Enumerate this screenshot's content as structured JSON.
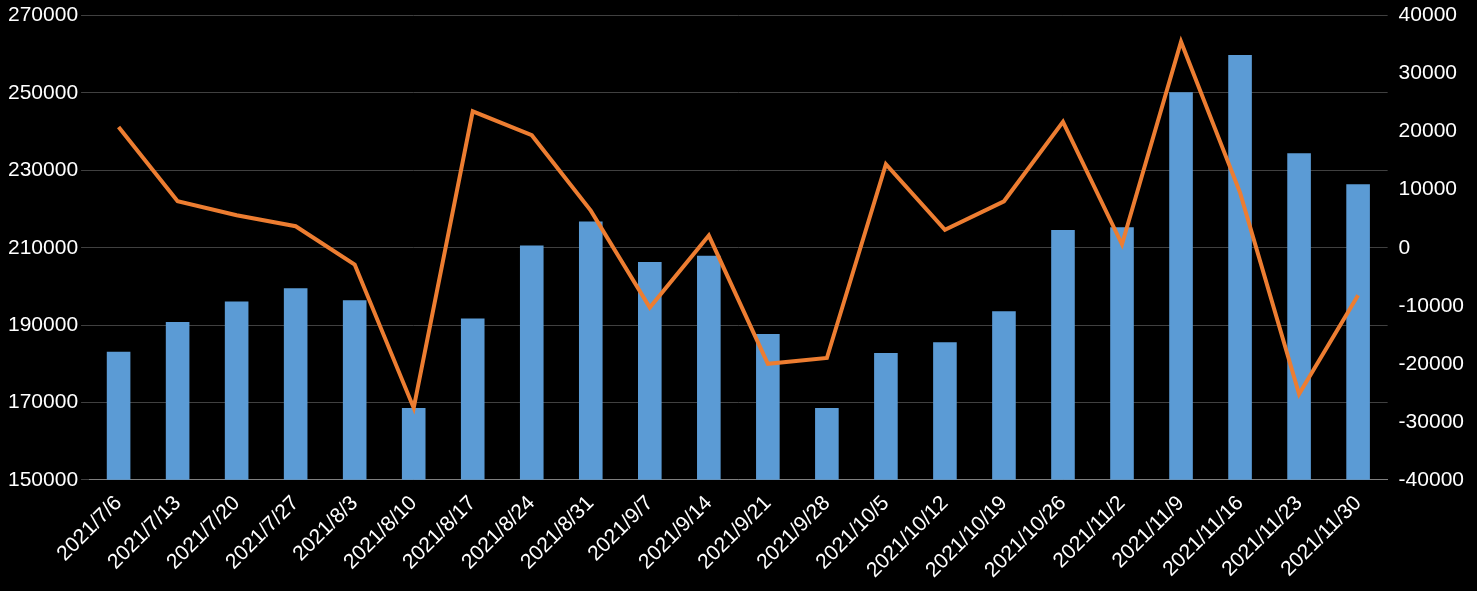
{
  "chart_data": {
    "type": "bar",
    "categories": [
      "2021/7/6",
      "2021/7/13",
      "2021/7/20",
      "2021/7/27",
      "2021/8/3",
      "2021/8/10",
      "2021/8/17",
      "2021/8/24",
      "2021/8/31",
      "2021/9/7",
      "2021/9/14",
      "2021/9/21",
      "2021/9/28",
      "2021/10/5",
      "2021/10/12",
      "2021/10/19",
      "2021/10/26",
      "2021/11/2",
      "2021/11/9",
      "2021/11/16",
      "2021/11/23",
      "2021/11/30"
    ],
    "series": [
      {
        "type": "bar",
        "color": "#5b9bd5",
        "values": [
          183100,
          190800,
          196100,
          199500,
          196400,
          168600,
          191700,
          210600,
          216800,
          206300,
          207900,
          187700,
          168600,
          182800,
          185600,
          193600,
          214600,
          215300,
          250200,
          259800,
          234400,
          226400
        ]
      },
      {
        "type": "line",
        "color": "#ed7d31",
        "axis": "y2",
        "values": [
          20800,
          8000,
          5600,
          3700,
          -2900,
          -27600,
          23500,
          19400,
          6400,
          -10300,
          2100,
          -20000,
          -19000,
          14400,
          3100,
          8000,
          21700,
          600,
          35500,
          9500,
          -25200,
          -8200
        ]
      }
    ],
    "ylim": [
      150000,
      270000
    ],
    "yticks": [
      150000,
      170000,
      190000,
      210000,
      230000,
      250000,
      270000
    ],
    "y2lim": [
      -40000,
      40000
    ],
    "y2ticks": [
      -40000,
      -30000,
      -20000,
      -10000,
      0,
      10000,
      20000,
      30000,
      40000
    ],
    "grid": true
  }
}
